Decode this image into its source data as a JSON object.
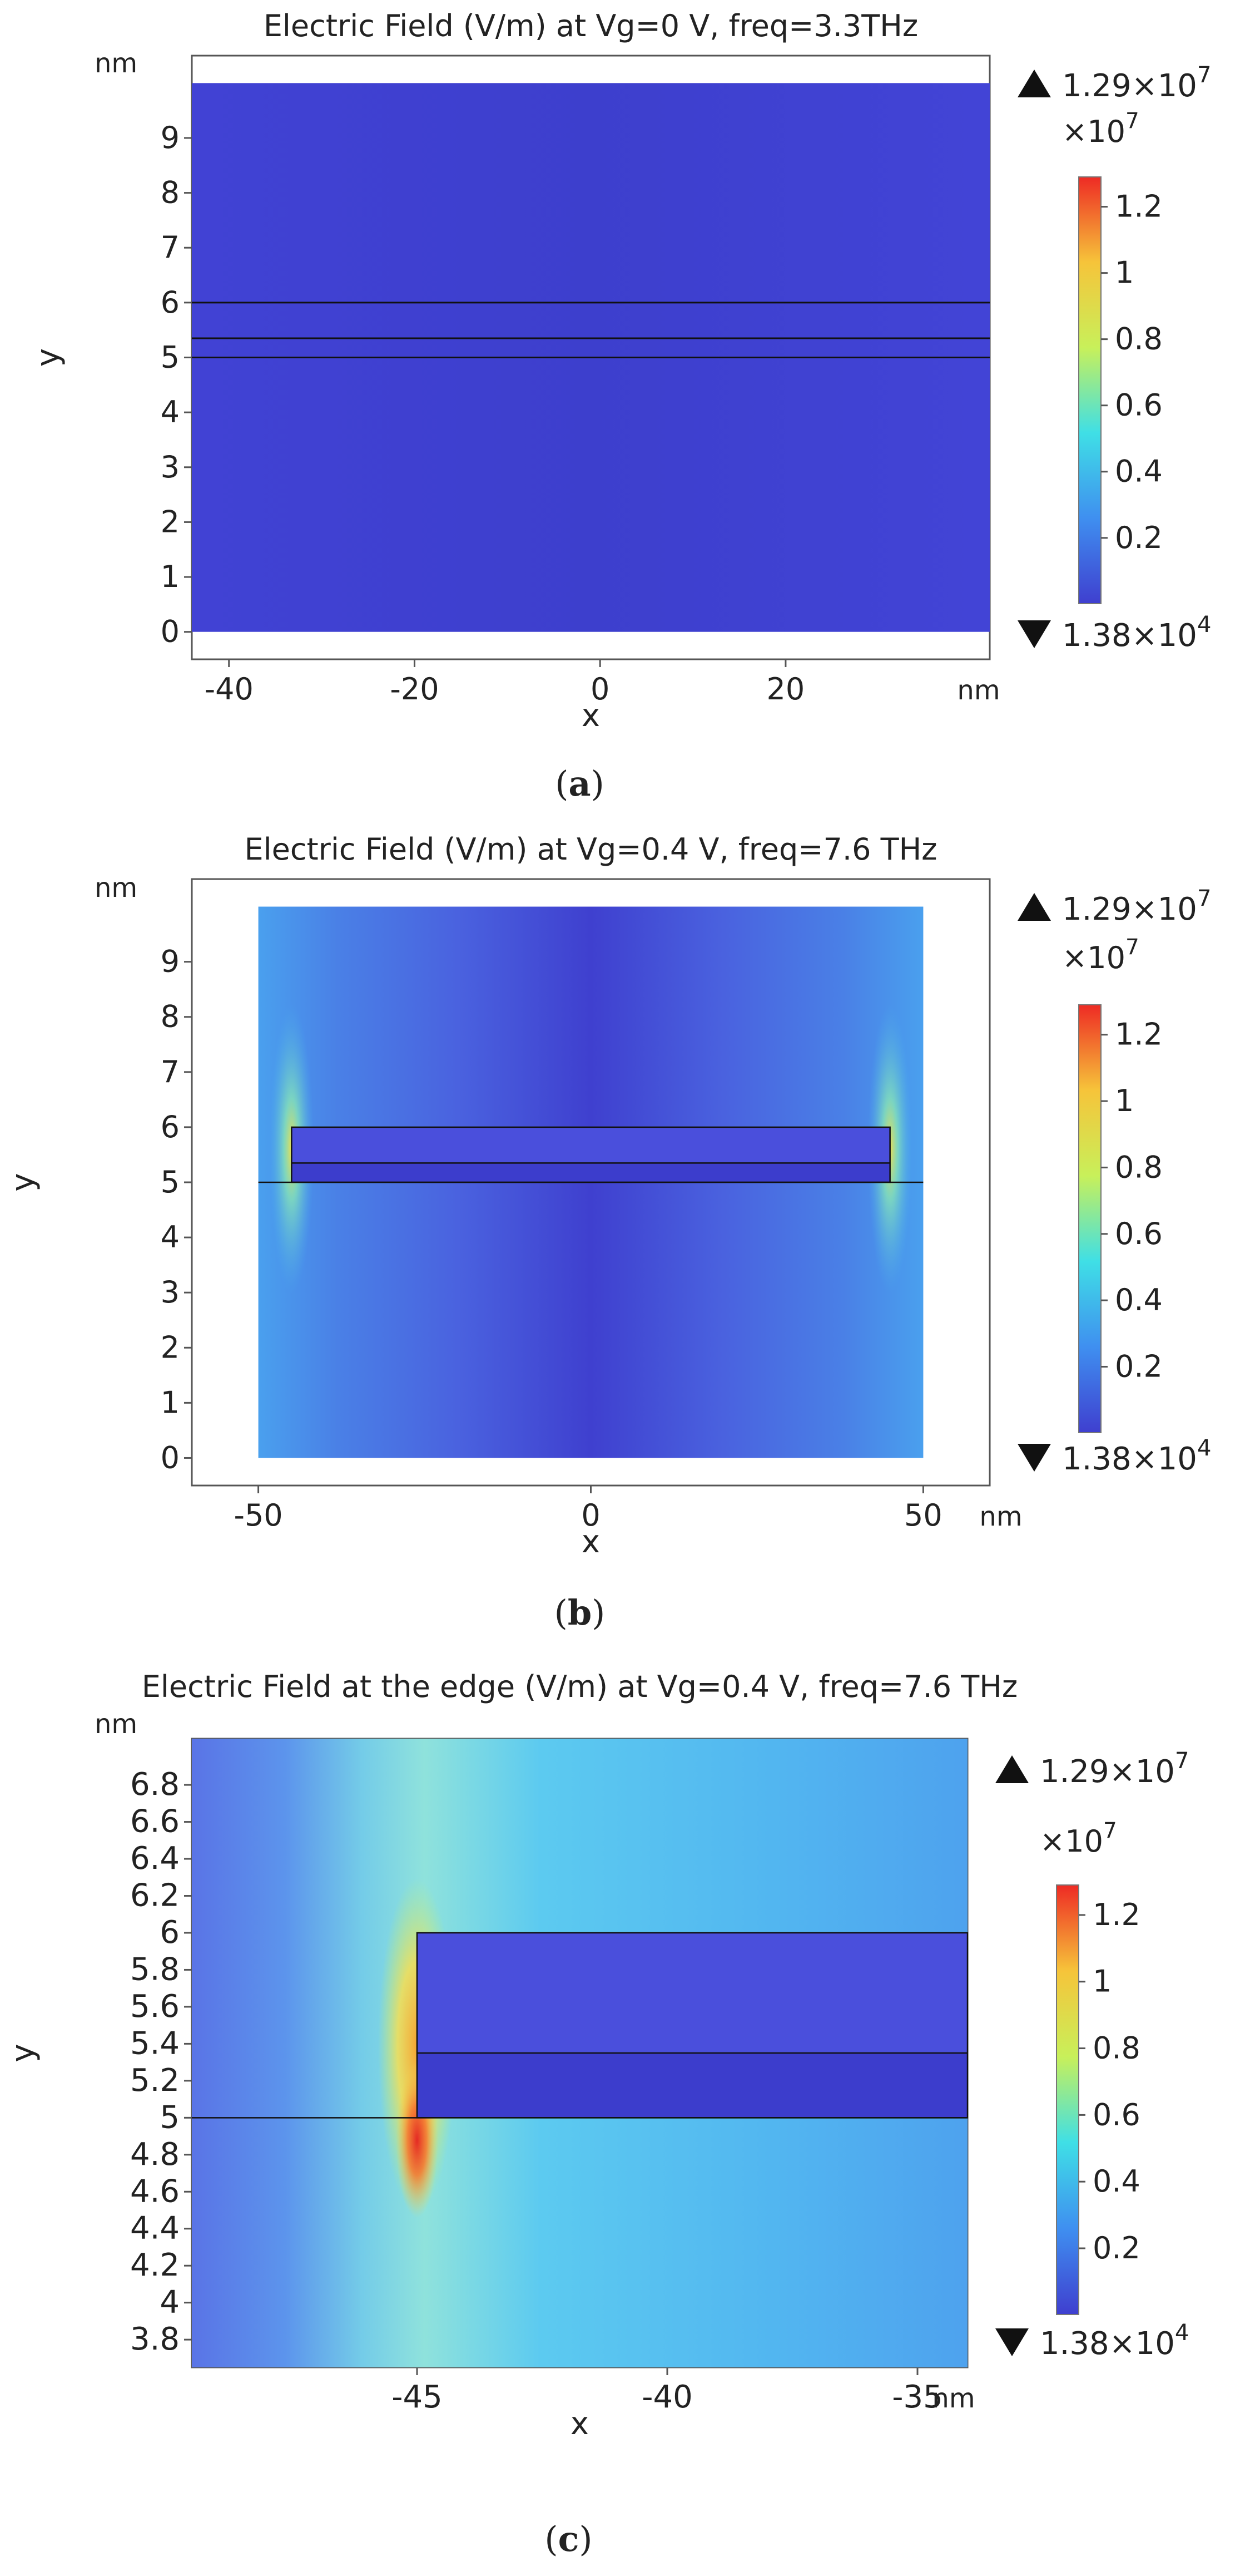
{
  "colorbar": {
    "max_label": "1.29×10",
    "max_exp": "7",
    "min_label": "1.38×10",
    "min_exp": "4",
    "scale_label": "×10",
    "scale_exp": "7",
    "ticks": [
      "1.2",
      "1",
      "0.8",
      "0.6",
      "0.4",
      "0.2"
    ],
    "colormap": "rainbow (blue-cyan-yellow-red)",
    "colors": [
      "#3f3fcf",
      "#3f8ff0",
      "#3fdfe6",
      "#c8f05a",
      "#f6c43a",
      "#ee2a24"
    ]
  },
  "chart_data": [
    {
      "type": "heatmap",
      "title": "Electric Field (V/m) at Vg=0 V, freq=3.3THz",
      "caption": "(a)",
      "caption_letter": "a",
      "xlabel": "x",
      "ylabel": "y",
      "x_unit": "nm",
      "y_unit": "nm",
      "xlim": [
        -44,
        42
      ],
      "ylim": [
        -0.5,
        10.5
      ],
      "xticks": [
        "-40",
        "-20",
        "0",
        "20"
      ],
      "yticks": [
        "0",
        "1",
        "2",
        "3",
        "4",
        "5",
        "6",
        "7",
        "8",
        "9"
      ],
      "domain_x": [
        -44,
        42
      ],
      "domain_y": [
        0,
        10
      ],
      "layer_boundaries_y": [
        5.0,
        5.35,
        6.0
      ],
      "layer_x_range": [
        -44,
        42
      ],
      "field_level_fraction": 0.02
    },
    {
      "type": "heatmap",
      "title": "Electric Field (V/m) at Vg=0.4 V, freq=7.6 THz",
      "caption": "(b)",
      "caption_letter": "b",
      "xlabel": "x",
      "ylabel": "y",
      "x_unit": "nm",
      "y_unit": "nm",
      "xlim": [
        -60,
        60
      ],
      "ylim": [
        -0.5,
        10.5
      ],
      "xticks": [
        "-50",
        "0",
        "50"
      ],
      "yticks": [
        "0",
        "1",
        "2",
        "3",
        "4",
        "5",
        "6",
        "7",
        "8",
        "9"
      ],
      "domain_x": [
        -50,
        50
      ],
      "domain_y": [
        0,
        10
      ],
      "layer_boundaries_y": [
        5.0,
        5.35,
        6.0
      ],
      "layer_x_range": [
        -45,
        45
      ],
      "hotspots_x": [
        -45,
        45
      ],
      "hotspot_y": 5.0
    },
    {
      "type": "heatmap",
      "title": "Electric Field at the edge (V/m) at Vg=0.4 V, freq=7.6 THz",
      "caption": "(c)",
      "caption_letter": "c",
      "xlabel": "x",
      "ylabel": "y",
      "x_unit": "nm",
      "y_unit": "nm",
      "xlim": [
        -49.5,
        -34
      ],
      "ylim": [
        3.65,
        7.05
      ],
      "xticks": [
        "-45",
        "-40",
        "-35"
      ],
      "yticks": [
        "3.8",
        "4",
        "4.2",
        "4.4",
        "4.6",
        "4.8",
        "5",
        "5.2",
        "5.4",
        "5.6",
        "5.8",
        "6",
        "6.2",
        "6.4",
        "6.6",
        "6.8"
      ],
      "domain_x": [
        -49.5,
        -34
      ],
      "domain_y": [
        3.65,
        7.05
      ],
      "layer_boundaries_y": [
        5.0,
        5.35,
        6.0
      ],
      "layer_x_range": [
        -45,
        -34
      ],
      "hotspots_x": [
        -45
      ],
      "hotspot_y": 5.0
    }
  ]
}
